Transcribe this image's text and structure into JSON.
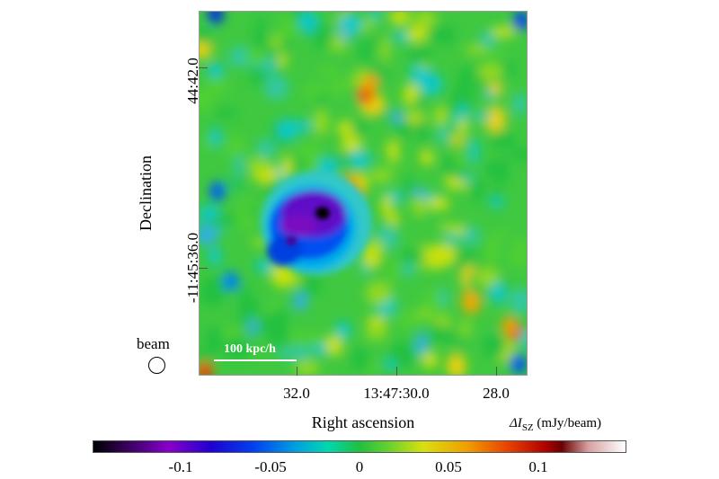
{
  "chart_data": {
    "type": "heatmap",
    "title": "",
    "xlabel": "Right ascension",
    "ylabel": "Declination",
    "x_tick_labels": [
      "32.0",
      "13:47:30.0",
      "28.0"
    ],
    "y_tick_labels": [
      "44:42.0",
      "-11:45:36.0"
    ],
    "colorbar": {
      "label_prefix": "ΔI",
      "label_sub": "SZ",
      "label_units": "(mJy/beam)",
      "tick_labels": [
        "-0.1",
        "-0.05",
        "0",
        "0.05",
        "0.1"
      ],
      "tick_values": [
        -0.1,
        -0.05,
        0,
        0.05,
        0.1
      ],
      "range": [
        -0.15,
        0.15
      ],
      "colormap": [
        "#000000",
        "#8a00c8",
        "#0040f0",
        "#00d8b0",
        "#20c040",
        "#d8e010",
        "#e84000",
        "#b00000",
        "#ffffff"
      ]
    },
    "features": [
      {
        "type": "decrement",
        "intensity": -0.13
      }
    ],
    "annotations": {
      "beam_label": "beam",
      "scale_bar_label": "100 kpc/h"
    }
  }
}
